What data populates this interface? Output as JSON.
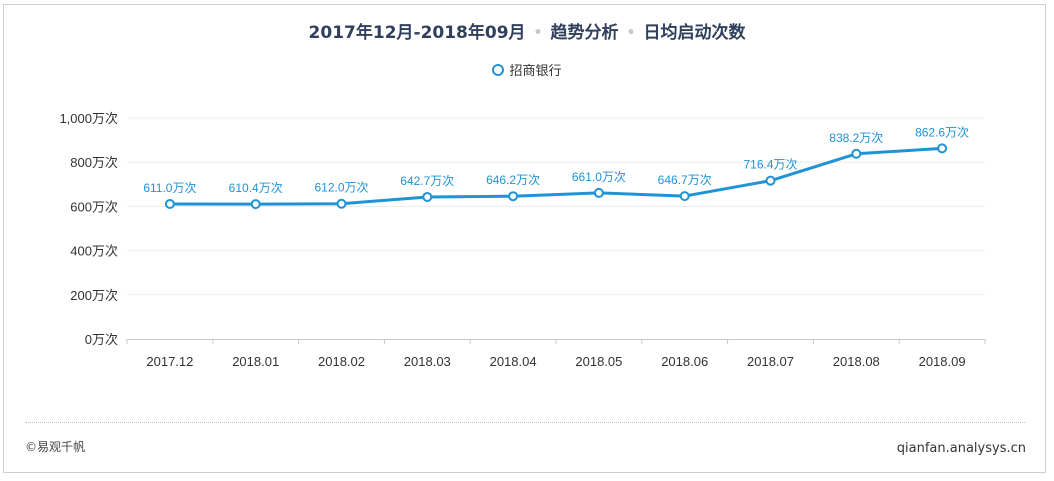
{
  "header": {
    "period": "2017年12月-2018年09月",
    "section": "趋势分析",
    "metric": "日均启动次数"
  },
  "footer": {
    "brand": "©易观千帆",
    "site": "qianfan.analysys.cn"
  },
  "colors": {
    "series": "#1f93d6",
    "title": "#2f3f5c"
  },
  "chart_data": {
    "type": "line",
    "categories": [
      "2017.12",
      "2018.01",
      "2018.02",
      "2018.03",
      "2018.04",
      "2018.05",
      "2018.06",
      "2018.07",
      "2018.08",
      "2018.09"
    ],
    "series": [
      {
        "name": "招商银行",
        "values": [
          611.0,
          610.4,
          612.0,
          642.7,
          646.2,
          661.0,
          646.7,
          716.4,
          838.2,
          862.6
        ],
        "labels": [
          "611.0万次",
          "610.4万次",
          "612.0万次",
          "642.7万次",
          "646.2万次",
          "661.0万次",
          "646.7万次",
          "716.4万次",
          "838.2万次",
          "862.6万次"
        ]
      }
    ],
    "yticks": [
      "0万次",
      "200万次",
      "400万次",
      "600万次",
      "800万次",
      "1,000万次"
    ],
    "ytick_values": [
      0,
      200,
      400,
      600,
      800,
      1000
    ],
    "ylim": [
      0,
      1000
    ],
    "unit": "万次",
    "grid": true,
    "legend_position": "top-center"
  }
}
